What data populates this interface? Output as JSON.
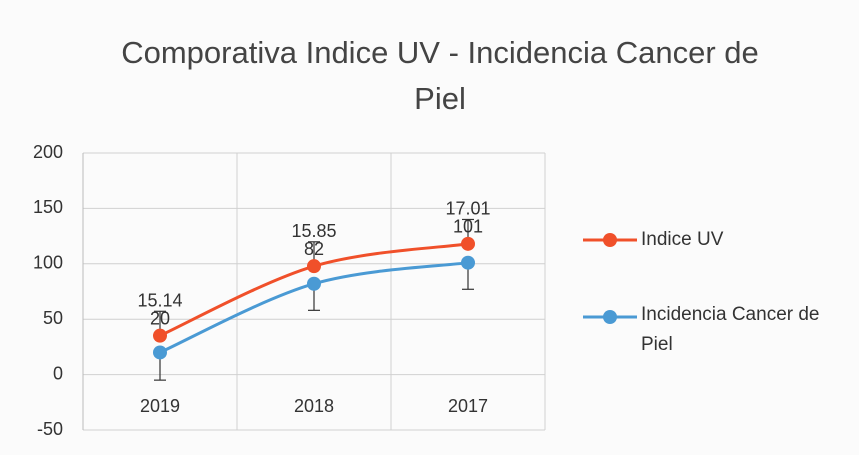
{
  "chart_data": {
    "type": "line",
    "stacked": true,
    "title": "Comporativa Indice UV - Incidencia Cancer de Piel",
    "categories": [
      "2019",
      "2018",
      "2017"
    ],
    "series": [
      {
        "name": "Incidencia Cancer de Piel",
        "color": "#4a9ad4",
        "values": [
          20,
          82,
          101
        ],
        "errors": [
          25,
          24,
          24
        ],
        "error_direction": "minus"
      },
      {
        "name": "Indice UV",
        "color": "#f0502a",
        "values": [
          15.14,
          15.85,
          17.01
        ],
        "errors": [
          22,
          22,
          22
        ],
        "error_direction": "plus"
      }
    ],
    "ylim": [
      -50,
      200
    ],
    "yticks": [
      -50,
      0,
      50,
      100,
      150,
      200
    ],
    "grid": true,
    "legend": "right"
  }
}
